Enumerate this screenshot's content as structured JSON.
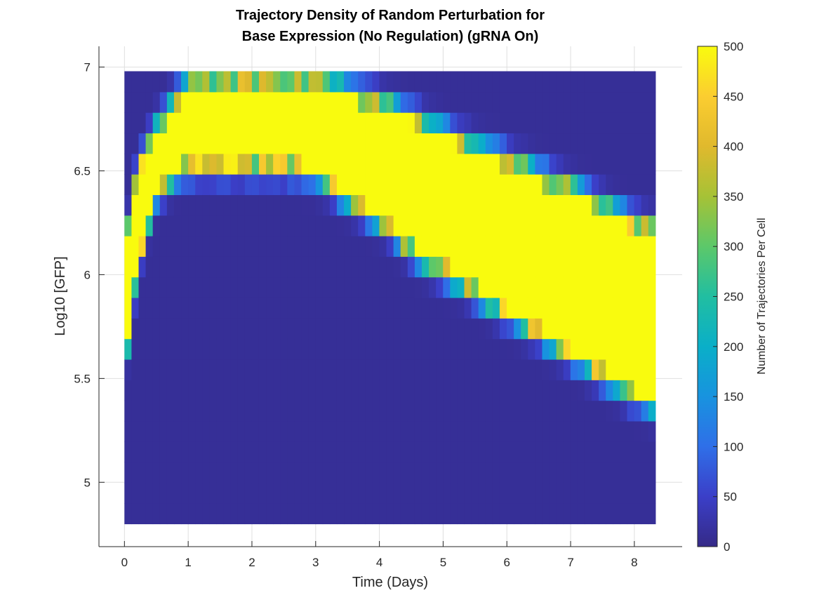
{
  "chart_data": {
    "type": "heatmap",
    "title_lines": [
      "Trajectory Density of Random Perturbation for",
      "Base Expression (No Regulation) (gRNA On)"
    ],
    "xlabel": "Time (Days)",
    "ylabel": "Log10 [GFP]",
    "xlim": [
      -0.4,
      8.75
    ],
    "ylim": [
      4.69,
      7.1
    ],
    "xticks": [
      0,
      1,
      2,
      3,
      4,
      5,
      6,
      7,
      8
    ],
    "yticks": [
      5,
      5.5,
      6,
      6.5,
      7
    ],
    "ytick_labels": [
      "5",
      "5.5",
      "6",
      "6.5",
      "7"
    ],
    "grid": true,
    "colorbar": {
      "label": "Number of Trajectories Per Cell",
      "range": [
        0,
        500
      ],
      "ticks": [
        0,
        50,
        100,
        150,
        200,
        250,
        300,
        350,
        400,
        450,
        500
      ]
    },
    "colormap": "parula",
    "time_bins": {
      "start": 0.0,
      "end": 8.33,
      "count": 75
    },
    "gfp_bins": {
      "start": 4.8,
      "end": 6.98,
      "count": 22
    },
    "dense_band": {
      "day": [
        0,
        0.1,
        0.3,
        0.5,
        0.8,
        1.1,
        1.5,
        2,
        2.5,
        3,
        3.5,
        4,
        4.5,
        5,
        5.5,
        6,
        6.5,
        7,
        7.5,
        8,
        8.33
      ],
      "upper_log10_gfp": [
        6.0,
        6.35,
        6.55,
        6.68,
        6.82,
        6.9,
        6.9,
        6.9,
        6.9,
        6.9,
        6.85,
        6.8,
        6.73,
        6.65,
        6.58,
        6.52,
        6.45,
        6.38,
        6.3,
        6.22,
        6.18
      ],
      "lower_log10_gfp": [
        5.5,
        5.85,
        6.2,
        6.42,
        6.52,
        6.55,
        6.55,
        6.55,
        6.55,
        6.52,
        6.4,
        6.3,
        6.15,
        6.05,
        5.95,
        5.85,
        5.75,
        5.65,
        5.55,
        5.45,
        5.4
      ]
    }
  }
}
